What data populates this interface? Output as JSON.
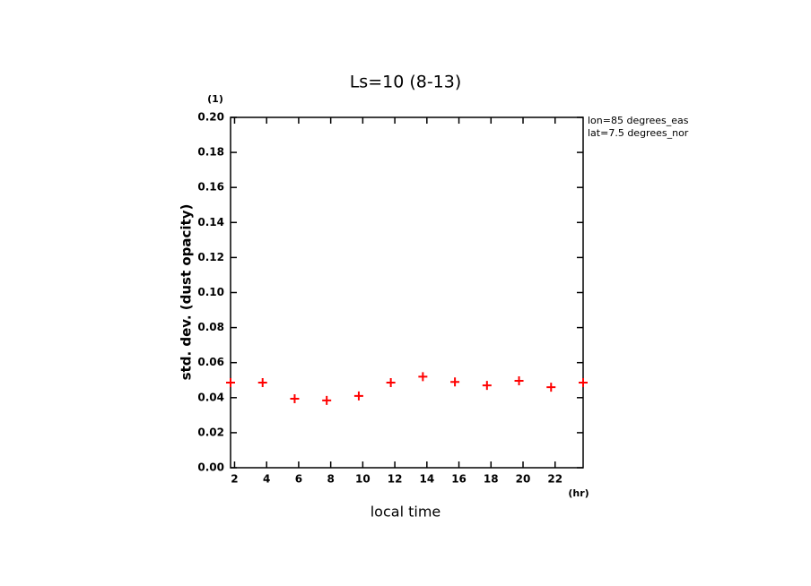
{
  "chart_data": {
    "type": "scatter",
    "title": "Ls=10 (8-13)",
    "y_unit": "(1)",
    "x_unit": "(hr)",
    "xlabel": "local time",
    "ylabel": "std. dev. (dust opacity)",
    "annotations": [
      "lon=85 degrees_eas",
      "lat=7.5 degrees_nor"
    ],
    "x": [
      1.75,
      3.75,
      5.75,
      7.75,
      9.75,
      11.75,
      13.75,
      15.75,
      17.75,
      19.75,
      21.75,
      23.75
    ],
    "values": [
      0.0486,
      0.0486,
      0.0394,
      0.0384,
      0.041,
      0.0486,
      0.052,
      0.049,
      0.047,
      0.0496,
      0.046,
      0.0486
    ],
    "color": "#ff0000",
    "xlim": [
      1.75,
      23.75
    ],
    "xticks": [
      2,
      4,
      6,
      8,
      10,
      12,
      14,
      16,
      18,
      20,
      22
    ],
    "ylim": [
      0,
      0.2
    ],
    "yticks": [
      {
        "value": 0,
        "label": "0.00"
      },
      {
        "value": 0.02,
        "label": "0.02"
      },
      {
        "value": 0.04,
        "label": "0.04"
      },
      {
        "value": 0.06,
        "label": "0.06"
      },
      {
        "value": 0.08,
        "label": "0.08"
      },
      {
        "value": 0.1,
        "label": "0.10"
      },
      {
        "value": 0.12,
        "label": "0.12"
      },
      {
        "value": 0.14,
        "label": "0.14"
      },
      {
        "value": 0.16,
        "label": "0.16"
      },
      {
        "value": 0.18,
        "label": "0.18"
      },
      {
        "value": 0.2,
        "label": "0.20"
      }
    ]
  }
}
